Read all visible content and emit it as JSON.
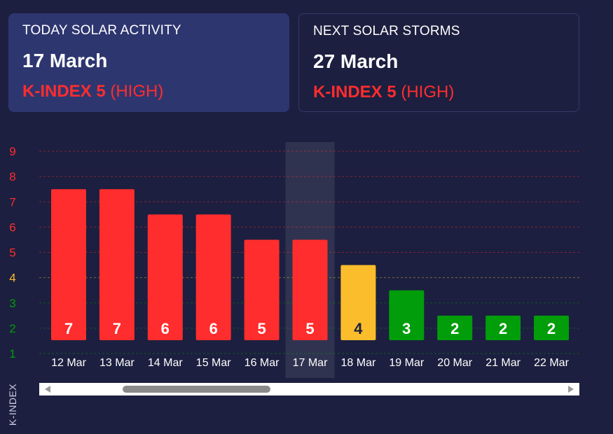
{
  "today": {
    "heading": "TODAY SOLAR ACTIVITY",
    "date": "17 March",
    "kindex_value": "K-INDEX 5",
    "kindex_level": "(HIGH)"
  },
  "next": {
    "heading": "NEXT SOLAR STORMS",
    "date": "27 March",
    "kindex_value": "K-INDEX 5",
    "kindex_level": "(HIGH)"
  },
  "colors": {
    "background": "#1c1f3f",
    "high": "#ff2d2d",
    "moderate": "#fbbd2b",
    "low": "#019d0a"
  },
  "chart_data": {
    "type": "bar",
    "categories": [
      "12 Mar",
      "13 Mar",
      "14 Mar",
      "15 Mar",
      "16 Mar",
      "17 Mar",
      "18 Mar",
      "19 Mar",
      "20 Mar",
      "21 Mar",
      "22 Mar"
    ],
    "values": [
      7,
      7,
      6,
      6,
      5,
      5,
      4,
      3,
      2,
      2,
      2
    ],
    "ylabel": "K-INDEX",
    "yticks": [
      1,
      2,
      3,
      4,
      5,
      6,
      7,
      8,
      9
    ],
    "ylim": [
      1,
      9
    ],
    "grid": true,
    "highlighted_category": "17 Mar",
    "color_rule": "0-3 green, 4 yellow, 5-9 red"
  }
}
